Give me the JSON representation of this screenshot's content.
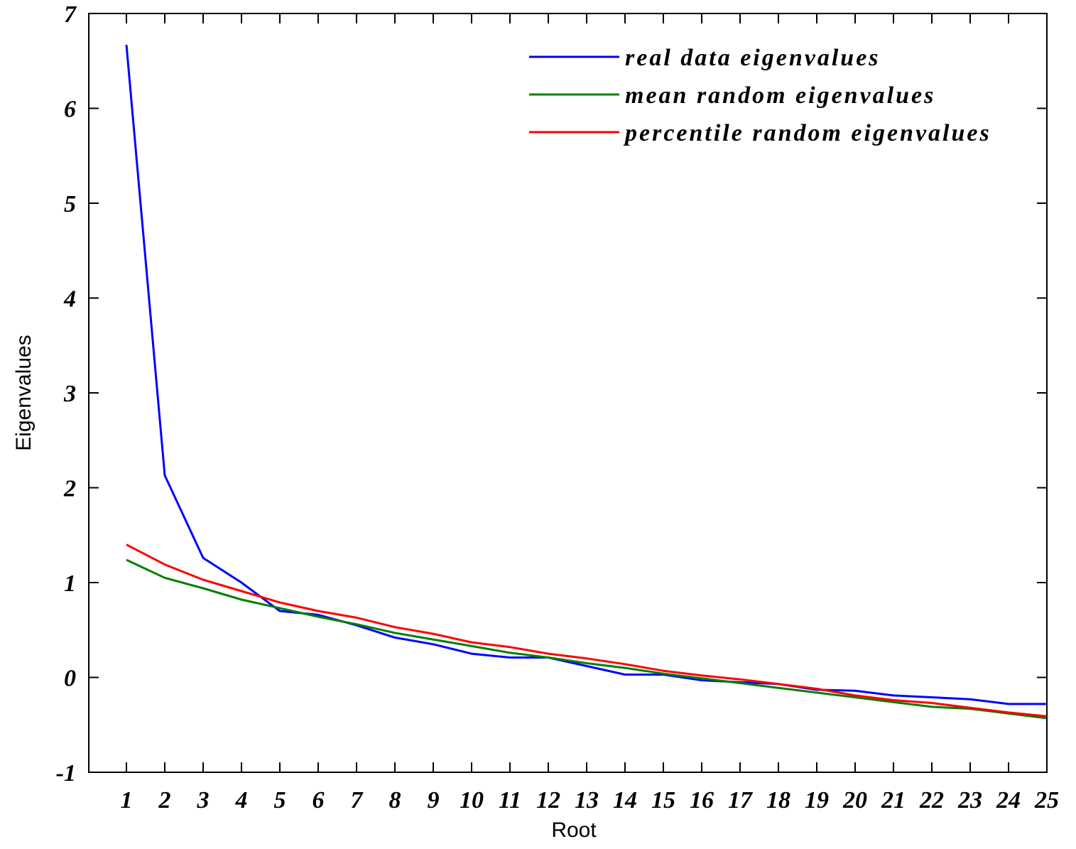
{
  "chart_data": {
    "type": "line",
    "title": "",
    "xlabel": "Root",
    "ylabel": "Eigenvalues",
    "xlim": [
      0,
      25
    ],
    "ylim": [
      -1,
      7
    ],
    "x": [
      1,
      2,
      3,
      4,
      5,
      6,
      7,
      8,
      9,
      10,
      11,
      12,
      13,
      14,
      15,
      16,
      17,
      18,
      19,
      20,
      21,
      22,
      23,
      24,
      25
    ],
    "x_ticks": [
      "1",
      "2",
      "3",
      "4",
      "5",
      "6",
      "7",
      "8",
      "9",
      "10",
      "11",
      "12",
      "13",
      "14",
      "15",
      "16",
      "17",
      "18",
      "19",
      "20",
      "21",
      "22",
      "23",
      "24",
      "25"
    ],
    "y_ticks": [
      "-1",
      "0",
      "1",
      "2",
      "3",
      "4",
      "5",
      "6",
      "7"
    ],
    "grid": false,
    "legend_position": "top-right",
    "series": [
      {
        "name": "real data eigenvalues",
        "color": "#0000ff",
        "values": [
          6.67,
          2.13,
          1.26,
          1.0,
          0.7,
          0.66,
          0.55,
          0.42,
          0.35,
          0.25,
          0.21,
          0.21,
          0.12,
          0.03,
          0.03,
          -0.03,
          -0.05,
          -0.07,
          -0.13,
          -0.14,
          -0.19,
          -0.21,
          -0.23,
          -0.28,
          -0.28
        ]
      },
      {
        "name": "mean random eigenvalues",
        "color": "#008000",
        "values": [
          1.24,
          1.05,
          0.94,
          0.82,
          0.73,
          0.64,
          0.56,
          0.47,
          0.4,
          0.33,
          0.26,
          0.21,
          0.15,
          0.1,
          0.04,
          -0.01,
          -0.06,
          -0.11,
          -0.16,
          -0.21,
          -0.26,
          -0.31,
          -0.33,
          -0.38,
          -0.43
        ]
      },
      {
        "name": "percentile random eigenvalues",
        "color": "#ff0000",
        "values": [
          1.4,
          1.19,
          1.03,
          0.91,
          0.79,
          0.7,
          0.63,
          0.53,
          0.46,
          0.37,
          0.32,
          0.25,
          0.2,
          0.14,
          0.07,
          0.02,
          -0.02,
          -0.07,
          -0.12,
          -0.19,
          -0.24,
          -0.27,
          -0.32,
          -0.37,
          -0.41
        ]
      }
    ]
  }
}
